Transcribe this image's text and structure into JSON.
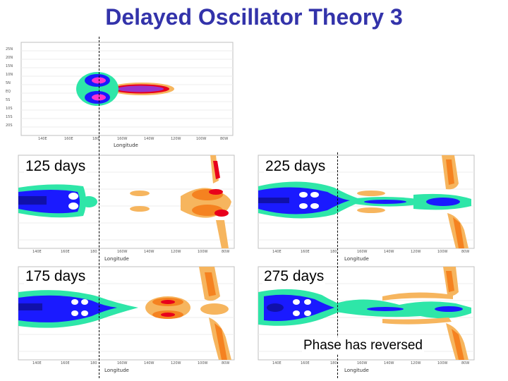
{
  "title": "Delayed Oscillator Theory 3",
  "axis": {
    "xlabel": "Longitude",
    "lon_ticks": [
      "140E",
      "160E",
      "180",
      "160W",
      "140W",
      "120W",
      "100W",
      "80W"
    ],
    "lat_ticks": [
      "25N",
      "20N",
      "15N",
      "10N",
      "5N",
      "EQ",
      "5S",
      "10S",
      "15S",
      "20S",
      "25S"
    ]
  },
  "panels": [
    {
      "id": "initial",
      "label": ""
    },
    {
      "id": "d125",
      "label": "125 days"
    },
    {
      "id": "d225",
      "label": "225 days"
    },
    {
      "id": "d175",
      "label": "175 days"
    },
    {
      "id": "d275",
      "label": "275 days"
    }
  ],
  "annotation": "Phase has reversed",
  "colors": {
    "title": "#3333aa",
    "red": "#e8001c",
    "orange": "#f58220",
    "light_orange": "#f6b55e",
    "blue": "#1a1aff",
    "dark_blue": "#1010aa",
    "teal": "#2ee6a8",
    "magenta": "#ff33cc",
    "violet": "#9a33cc"
  }
}
